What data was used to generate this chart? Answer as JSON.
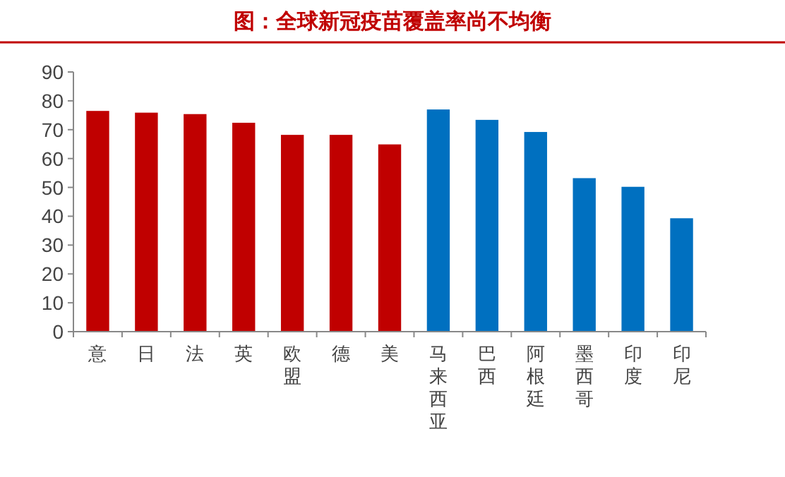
{
  "chart_data": {
    "type": "bar",
    "title": "图：全球新冠疫苗覆盖率尚不均衡",
    "categories": [
      "意",
      "日",
      "法",
      "英",
      "欧盟",
      "德",
      "美",
      "马来西亚",
      "巴西",
      "阿根廷",
      "墨西哥",
      "印度",
      "印尼"
    ],
    "values": [
      76.5,
      75.9,
      75.4,
      72.4,
      68.2,
      68.2,
      64.9,
      77.0,
      73.4,
      69.2,
      53.2,
      50.2,
      39.3
    ],
    "colors": [
      "#c00000",
      "#c00000",
      "#c00000",
      "#c00000",
      "#c00000",
      "#c00000",
      "#c00000",
      "#0070c0",
      "#0070c0",
      "#0070c0",
      "#0070c0",
      "#0070c0",
      "#0070c0"
    ],
    "ylim": [
      0,
      90
    ],
    "yticks": [
      0,
      10,
      20,
      30,
      40,
      50,
      60,
      70,
      80,
      90
    ],
    "grid": false
  }
}
